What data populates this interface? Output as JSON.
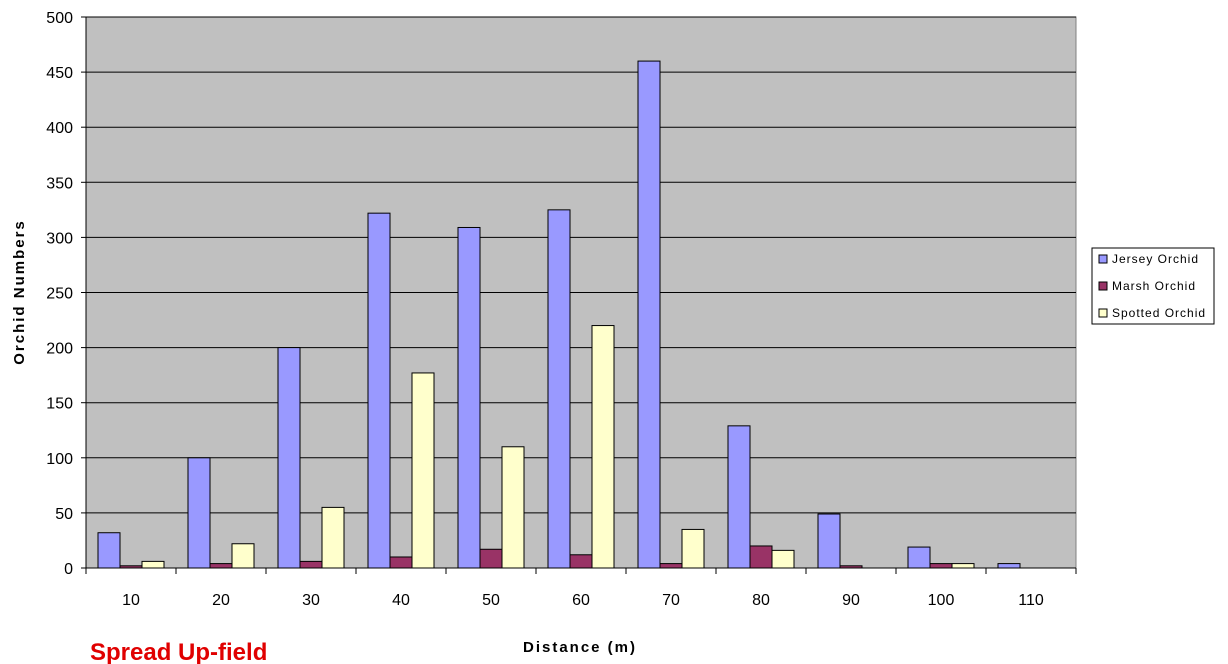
{
  "chart_data": {
    "type": "bar",
    "title": "",
    "xlabel": "Distance (m)",
    "ylabel": "Orchid Numbers",
    "categories": [
      "10",
      "20",
      "30",
      "40",
      "50",
      "60",
      "70",
      "80",
      "90",
      "100",
      "110"
    ],
    "series": [
      {
        "name": "Jersey Orchid",
        "color": "#9999ff",
        "values": [
          32,
          100,
          200,
          322,
          309,
          325,
          460,
          129,
          49,
          19,
          4
        ]
      },
      {
        "name": "Marsh Orchid",
        "color": "#993366",
        "values": [
          2,
          4,
          6,
          10,
          17,
          12,
          4,
          20,
          2,
          4,
          0
        ]
      },
      {
        "name": "Spotted Orchid",
        "color": "#ffffcc",
        "values": [
          6,
          22,
          55,
          177,
          110,
          220,
          35,
          16,
          0,
          4,
          0
        ]
      }
    ],
    "ylim": [
      0,
      500
    ],
    "yticks": [
      0,
      50,
      100,
      150,
      200,
      250,
      300,
      350,
      400,
      450,
      500
    ],
    "grid": true,
    "plot_background": "#c0c0c0",
    "legend_position": "right"
  },
  "annotation": {
    "text": "Spread Up-field",
    "color": "#e00000"
  }
}
